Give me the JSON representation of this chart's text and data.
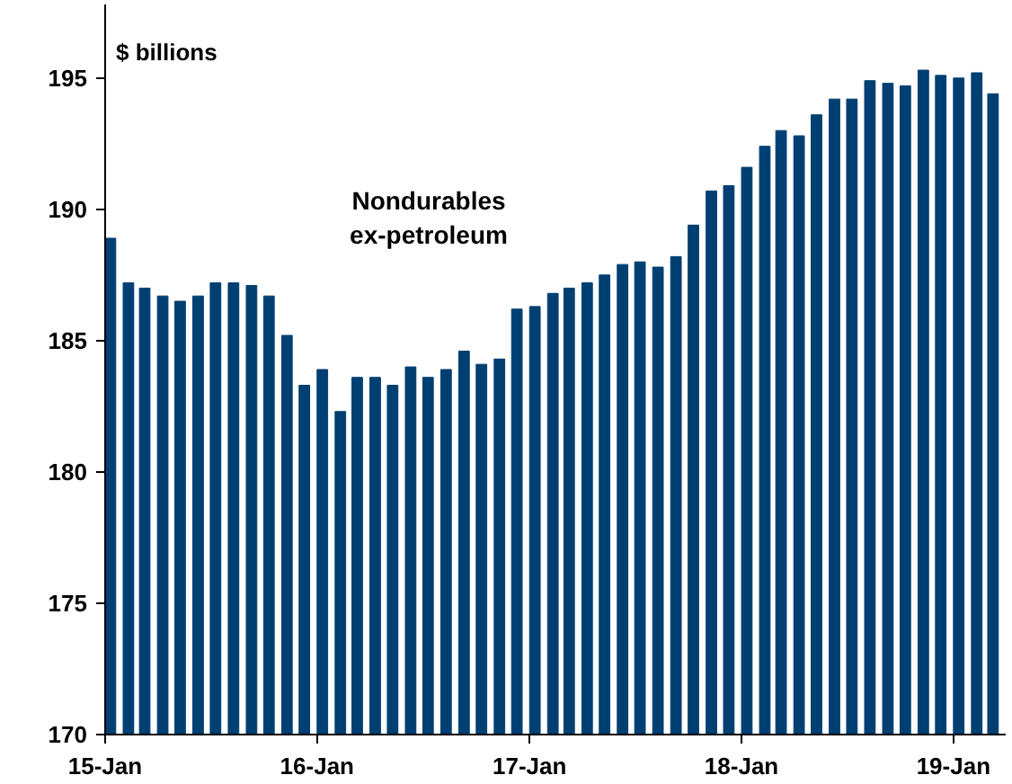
{
  "chart_data": {
    "type": "bar",
    "ylabel": "$ billions",
    "annotations": [
      "Nondurables\nex-petroleum"
    ],
    "color": "#003f72",
    "x": [
      "2015-01",
      "2015-02",
      "2015-03",
      "2015-04",
      "2015-05",
      "2015-06",
      "2015-07",
      "2015-08",
      "2015-09",
      "2015-10",
      "2015-11",
      "2015-12",
      "2016-01",
      "2016-02",
      "2016-03",
      "2016-04",
      "2016-05",
      "2016-06",
      "2016-07",
      "2016-08",
      "2016-09",
      "2016-10",
      "2016-11",
      "2016-12",
      "2017-01",
      "2017-02",
      "2017-03",
      "2017-04",
      "2017-05",
      "2017-06",
      "2017-07",
      "2017-08",
      "2017-09",
      "2017-10",
      "2017-11",
      "2017-12",
      "2018-01",
      "2018-02",
      "2018-03",
      "2018-04",
      "2018-05",
      "2018-06",
      "2018-07",
      "2018-08",
      "2018-09",
      "2018-10",
      "2018-11",
      "2018-12",
      "2019-01",
      "2019-02",
      "2019-03"
    ],
    "values": [
      188.9,
      187.2,
      187.0,
      186.7,
      186.5,
      186.7,
      187.2,
      187.2,
      187.1,
      186.7,
      185.2,
      183.3,
      183.9,
      182.3,
      183.6,
      183.6,
      183.3,
      184.0,
      183.6,
      183.9,
      184.6,
      184.1,
      184.3,
      186.2,
      186.3,
      186.8,
      187.0,
      187.2,
      187.5,
      187.9,
      188.0,
      187.8,
      188.2,
      189.4,
      190.7,
      190.9,
      191.6,
      192.4,
      193.0,
      192.8,
      193.6,
      194.2,
      194.2,
      194.9,
      194.8,
      194.7,
      195.3,
      195.1,
      195.0,
      195.2,
      194.4
    ],
    "xlim": [
      "2015-01-01",
      "2019-04-01"
    ],
    "xticks": [
      {
        "value": "2015-01",
        "label": "15-Jan"
      },
      {
        "value": "2016-01",
        "label": "16-Jan"
      },
      {
        "value": "2017-01",
        "label": "17-Jan"
      },
      {
        "value": "2018-01",
        "label": "18-Jan"
      },
      {
        "value": "2019-01",
        "label": "19-Jan"
      }
    ],
    "ylim": [
      170,
      197.8
    ],
    "yticks": [
      170,
      175,
      180,
      185,
      190,
      195
    ],
    "grid": false
  }
}
